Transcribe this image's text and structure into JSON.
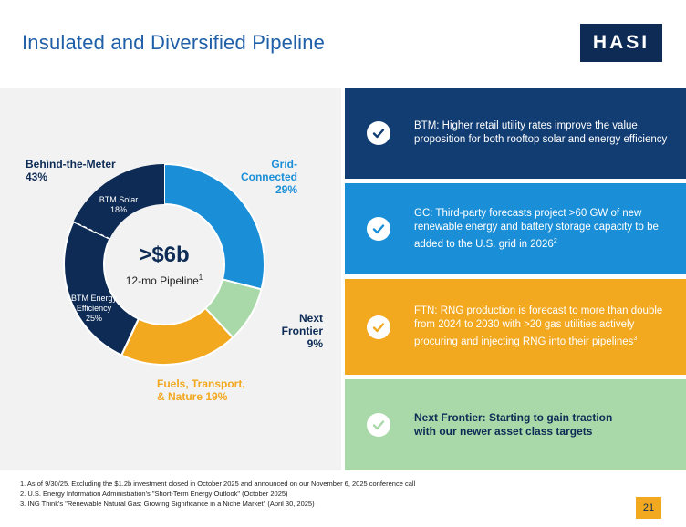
{
  "title": "Insulated and Diversified Pipeline",
  "logo": "HASI",
  "donut": {
    "center_value": ">$6b",
    "center_label": "12-mo Pipeline",
    "center_sup": "1",
    "segments": [
      {
        "name": "Grid-Connected",
        "percent": 29,
        "color": "#1a8fd8"
      },
      {
        "name": "Next Frontier",
        "percent": 9,
        "color": "#a9d9a9"
      },
      {
        "name": "Fuels, Transport, & Nature",
        "percent": 19,
        "color": "#f2a81f"
      },
      {
        "name": "BTM Energy Efficiency",
        "percent": 25,
        "color": "#0d2b55"
      },
      {
        "name": "BTM Solar",
        "percent": 18,
        "color": "#0d2b55"
      }
    ],
    "labels": {
      "btm": "Behind-the-Meter",
      "btm_pct": "43%",
      "gc": "Grid-Connected",
      "gc_pct": "29%",
      "nf": "Next Frontier",
      "nf_pct": "9%",
      "fuel1": "Fuels, Transport,",
      "fuel2": "& Nature 19%",
      "btm_solar": "BTM Solar",
      "btm_solar_pct": "18%",
      "btm_ee1": "BTM Energy",
      "btm_ee2": "Efficiency",
      "btm_ee_pct": "25%"
    }
  },
  "cards": [
    {
      "text": "BTM: Higher retail utility rates improve the value proposition for both rooftop solar and energy efficiency",
      "sup": ""
    },
    {
      "text": "GC: Third-party forecasts project >60 GW of new renewable energy and battery storage capacity to be added to the U.S. grid in 2026",
      "sup": "2"
    },
    {
      "text": "FTN: RNG production is forecast to more than double from 2024 to 2030 with >20 gas utilities actively procuring and injecting RNG into their pipelines",
      "sup": "3"
    },
    {
      "text": "Next Frontier: Starting to gain traction with our newer asset class targets",
      "sup": ""
    }
  ],
  "colors": {
    "navy": "#0d2b55",
    "blue": "#1a8fd8",
    "orange": "#f2a81f",
    "green": "#a9d9a9"
  },
  "footnotes": [
    "1.   As of 9/30/25. Excluding the $1.2b investment closed in October 2025 and announced on our November 6, 2025 conference call",
    "2.   U.S. Energy Information Administration's \"Short-Term Energy Outlook\" (October 2025)",
    "3.   ING Think's \"Renewable Natural Gas: Growing Significance in a Niche Market\" (April 30, 2025)"
  ],
  "page_number": "21"
}
